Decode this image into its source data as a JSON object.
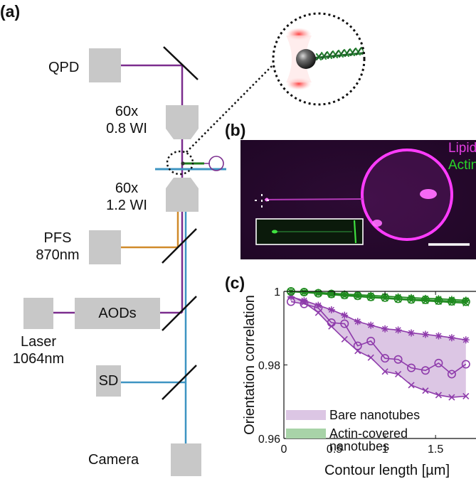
{
  "panels": {
    "a": "(a)",
    "b": "(b)",
    "c": "(c)"
  },
  "setup": {
    "qpd": "QPD",
    "objective_top": [
      "60x",
      "0.8 WI"
    ],
    "objective_bottom": [
      "60x",
      "1.2 WI"
    ],
    "pfs": [
      "PFS",
      "870nm"
    ],
    "aods": "AODs",
    "laser": [
      "Laser",
      "1064nm"
    ],
    "sd": "SD",
    "camera": "Camera"
  },
  "micrograph": {
    "legend": [
      "Lipid",
      "Actin"
    ]
  },
  "colors": {
    "lipid_beam": "#7b2d8e",
    "pfs_beam": "#d08a2a",
    "camera_beam": "#3d94c2",
    "component_gray": "#c8c8c8",
    "lipid_label": "#e23ee0",
    "actin_label": "#29d629",
    "bare_fill": "#dcc6e4",
    "actin_fill": "#a8d3a8",
    "bare_series": "#8e3bab",
    "actin_series": "#1f8a1f"
  },
  "chart_data": {
    "type": "line",
    "title": "",
    "xlabel": "Contour length  [µm]",
    "ylabel": "Orientation correlation",
    "xlim": [
      0,
      1.9
    ],
    "ylim": [
      0.96,
      1.0
    ],
    "xticks": [
      0,
      0.5,
      1,
      1.5
    ],
    "xtick_labels": [
      "0",
      "0.5",
      "1",
      "1.5"
    ],
    "yticks": [
      0.96,
      0.98,
      1.0
    ],
    "ytick_labels": [
      "0.96",
      "0.98",
      "1"
    ],
    "legend": {
      "placement": "bottom-left",
      "entries": [
        "Bare nanotubes",
        "Actin-covered\nnanotubes"
      ]
    },
    "series": [
      {
        "group": "bare",
        "marker": "*",
        "x": [
          0.07,
          0.2,
          0.34,
          0.47,
          0.6,
          0.73,
          0.86,
          1.0,
          1.13,
          1.26,
          1.4,
          1.53,
          1.66,
          1.8
        ],
        "y": [
          0.9985,
          0.9975,
          0.9962,
          0.995,
          0.9935,
          0.9918,
          0.9908,
          0.9898,
          0.9895,
          0.9887,
          0.9883,
          0.9879,
          0.9874,
          0.9868
        ]
      },
      {
        "group": "bare",
        "marker": "o",
        "x": [
          0.07,
          0.2,
          0.34,
          0.47,
          0.6,
          0.73,
          0.86,
          1.0,
          1.13,
          1.26,
          1.4,
          1.53,
          1.66,
          1.8
        ],
        "y": [
          0.9972,
          0.9966,
          0.9955,
          0.9915,
          0.9912,
          0.9852,
          0.9865,
          0.9818,
          0.9815,
          0.9792,
          0.9785,
          0.9805,
          0.9775,
          0.9802
        ]
      },
      {
        "group": "bare",
        "marker": "x",
        "x": [
          0.07,
          0.2,
          0.34,
          0.47,
          0.6,
          0.73,
          0.86,
          1.0,
          1.13,
          1.26,
          1.4,
          1.53,
          1.66,
          1.8
        ],
        "y": [
          0.9988,
          0.997,
          0.9942,
          0.9905,
          0.987,
          0.9838,
          0.982,
          0.9782,
          0.9775,
          0.9745,
          0.973,
          0.9718,
          0.9712,
          0.9715
        ]
      },
      {
        "group": "actin",
        "marker": "o",
        "x": [
          0.07,
          0.2,
          0.34,
          0.47,
          0.6,
          0.73,
          0.86,
          1.0,
          1.13,
          1.26,
          1.4,
          1.53,
          1.66,
          1.8
        ],
        "y": [
          1.0,
          0.9998,
          0.9995,
          0.9993,
          0.999,
          0.9988,
          0.9985,
          0.9983,
          0.998,
          0.9978,
          0.9977,
          0.9975,
          0.9973,
          0.9972
        ]
      },
      {
        "group": "actin",
        "marker": "x",
        "x": [
          0.07,
          0.2,
          0.34,
          0.47,
          0.6,
          0.73,
          0.86,
          1.0,
          1.13,
          1.26,
          1.4,
          1.53,
          1.66,
          1.8
        ],
        "y": [
          0.9999,
          0.9997,
          0.9994,
          0.9991,
          0.9988,
          0.9986,
          0.9983,
          0.9981,
          0.9978,
          0.9976,
          0.9974,
          0.9972,
          0.997,
          0.9968
        ]
      },
      {
        "group": "actin",
        "marker": "*",
        "x": [
          0.07,
          0.2,
          0.34,
          0.47,
          0.6,
          0.73,
          0.86,
          1.0,
          1.13,
          1.26,
          1.4,
          1.53,
          1.66,
          1.8
        ],
        "y": [
          1.0,
          0.9999,
          0.9997,
          0.9995,
          0.9993,
          0.9991,
          0.9989,
          0.9987,
          0.9985,
          0.9983,
          0.9981,
          0.998,
          0.9978,
          0.9976
        ]
      }
    ]
  }
}
